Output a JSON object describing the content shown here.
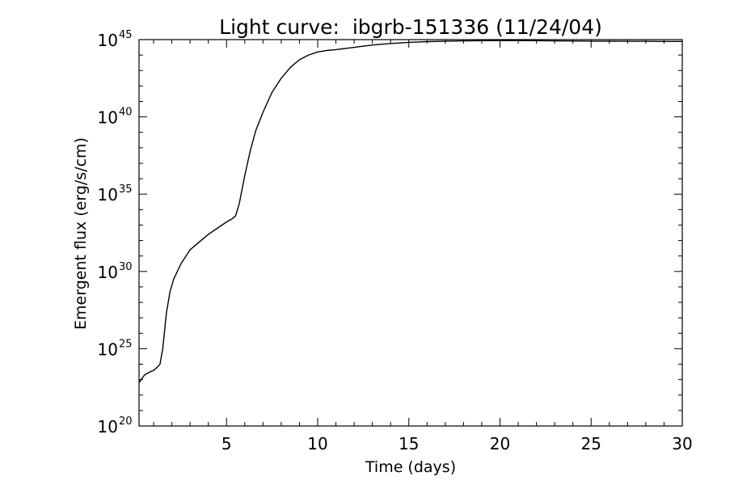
{
  "chart_data": {
    "type": "line",
    "title": "Light curve:  ibgrb-151336 (11/24/04)",
    "xlabel": "Time (days)",
    "ylabel": "Emergent flux (erg/s/cm)",
    "xlim": [
      0.2,
      30
    ],
    "ylim_log10": [
      20,
      45
    ],
    "yscale": "log",
    "grid": false,
    "x_ticks": [
      5,
      10,
      15,
      20,
      25,
      30
    ],
    "x_tick_labels": [
      "5",
      "10",
      "15",
      "20",
      "25",
      "30"
    ],
    "y_ticks_log10": [
      20,
      25,
      30,
      35,
      40,
      45
    ],
    "y_tick_labels": [
      {
        "base": "10",
        "exp": "20"
      },
      {
        "base": "10",
        "exp": "25"
      },
      {
        "base": "10",
        "exp": "30"
      },
      {
        "base": "10",
        "exp": "35"
      },
      {
        "base": "10",
        "exp": "40"
      },
      {
        "base": "10",
        "exp": "45"
      }
    ],
    "series": [
      {
        "x": [
          0.2,
          0.5,
          0.8,
          1.0,
          1.2,
          1.35,
          1.5,
          1.7,
          1.9,
          2.1,
          2.5,
          3.0,
          3.5,
          4.0,
          4.5,
          5.0,
          5.3,
          5.5,
          5.7,
          6.0,
          6.3,
          6.6,
          7.0,
          7.5,
          8.0,
          8.5,
          9.0,
          9.5,
          10.0,
          10.5,
          11.0,
          12.0,
          13.0,
          14.0,
          15.0,
          16.0,
          17.0,
          18.0,
          19.0,
          20.0,
          21.0,
          22.0,
          23.0,
          24.0,
          25.0,
          26.0,
          27.0,
          28.0,
          29.0,
          30.0
        ],
        "y_log10": [
          22.8,
          23.3,
          23.5,
          23.6,
          23.8,
          24.0,
          25.0,
          27.3,
          28.7,
          29.5,
          30.5,
          31.4,
          31.9,
          32.4,
          32.8,
          33.2,
          33.4,
          33.6,
          34.4,
          36.2,
          37.8,
          39.1,
          40.3,
          41.6,
          42.5,
          43.2,
          43.7,
          44.0,
          44.2,
          44.3,
          44.35,
          44.5,
          44.65,
          44.75,
          44.82,
          44.87,
          44.9,
          44.92,
          44.93,
          44.94,
          44.94,
          44.93,
          44.92,
          44.91,
          44.9,
          44.9,
          44.89,
          44.89,
          44.88,
          44.88
        ]
      }
    ]
  }
}
